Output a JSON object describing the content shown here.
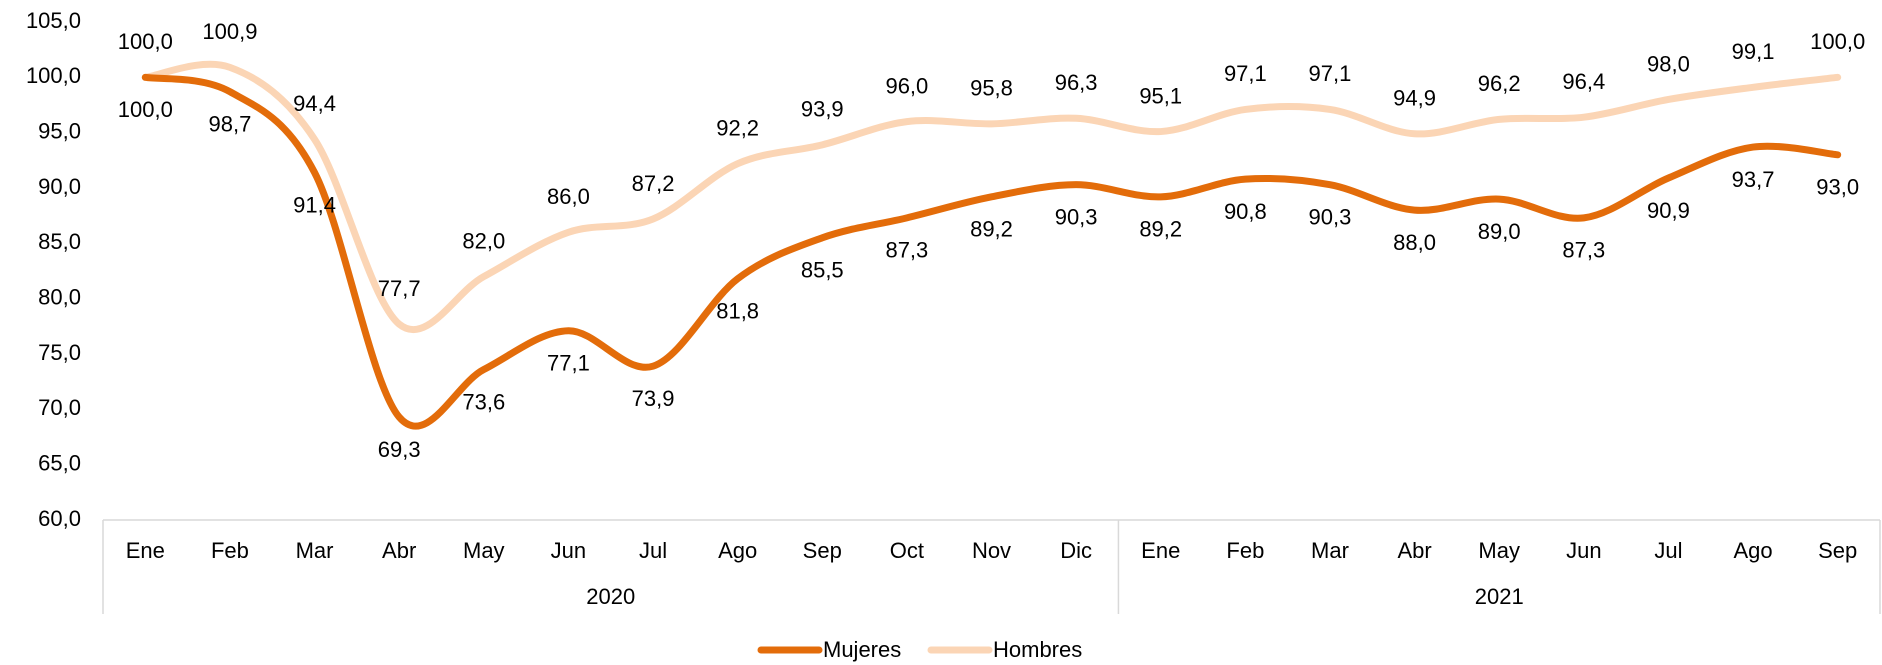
{
  "chart_data": {
    "type": "line",
    "groups": [
      {
        "label": "2020",
        "categories": [
          "Ene",
          "Feb",
          "Mar",
          "Abr",
          "May",
          "Jun",
          "Jul",
          "Ago",
          "Sep",
          "Oct",
          "Nov",
          "Dic"
        ]
      },
      {
        "label": "2021",
        "categories": [
          "Ene",
          "Feb",
          "Mar",
          "Abr",
          "May",
          "Jun",
          "Jul",
          "Ago",
          "Sep"
        ]
      }
    ],
    "series": [
      {
        "name": "Mujeres",
        "color": "#e36c0a",
        "values": [
          100.0,
          98.7,
          91.4,
          69.3,
          73.6,
          77.1,
          73.9,
          81.8,
          85.5,
          87.3,
          89.2,
          90.3,
          89.2,
          90.8,
          90.3,
          88.0,
          89.0,
          87.3,
          90.9,
          93.7,
          93.0
        ],
        "value_labels": [
          "100,0",
          "98,7",
          "91,4",
          "69,3",
          "73,6",
          "77,1",
          "73,9",
          "81,8",
          "85,5",
          "87,3",
          "89,2",
          "90,3",
          "89,2",
          "90,8",
          "90,3",
          "88,0",
          "89,0",
          "87,3",
          "90,9",
          "93,7",
          "93,0"
        ]
      },
      {
        "name": "Hombres",
        "color": "#fbd5b5",
        "values": [
          100.0,
          100.9,
          94.4,
          77.7,
          82.0,
          86.0,
          87.2,
          92.2,
          93.9,
          96.0,
          95.8,
          96.3,
          95.1,
          97.1,
          97.1,
          94.9,
          96.2,
          96.4,
          98.0,
          99.1,
          100.0
        ],
        "value_labels": [
          "100,0",
          "100,9",
          "94,4",
          "77,7",
          "82,0",
          "86,0",
          "87,2",
          "92,2",
          "93,9",
          "96,0",
          "95,8",
          "96,3",
          "95,1",
          "97,1",
          "97,1",
          "94,9",
          "96,2",
          "96,4",
          "98,0",
          "99,1",
          "100,0"
        ]
      }
    ],
    "ylim": [
      60,
      105
    ],
    "yticks": [
      {
        "value": 60,
        "label": "60,0"
      },
      {
        "value": 65,
        "label": "65,0"
      },
      {
        "value": 70,
        "label": "70,0"
      },
      {
        "value": 75,
        "label": "75,0"
      },
      {
        "value": 80,
        "label": "80,0"
      },
      {
        "value": 85,
        "label": "85,0"
      },
      {
        "value": 90,
        "label": "90,0"
      },
      {
        "value": 95,
        "label": "95,0"
      },
      {
        "value": 100,
        "label": "100,0"
      },
      {
        "value": 105,
        "label": "105,0"
      }
    ],
    "grid": false,
    "legend": "bottom"
  }
}
